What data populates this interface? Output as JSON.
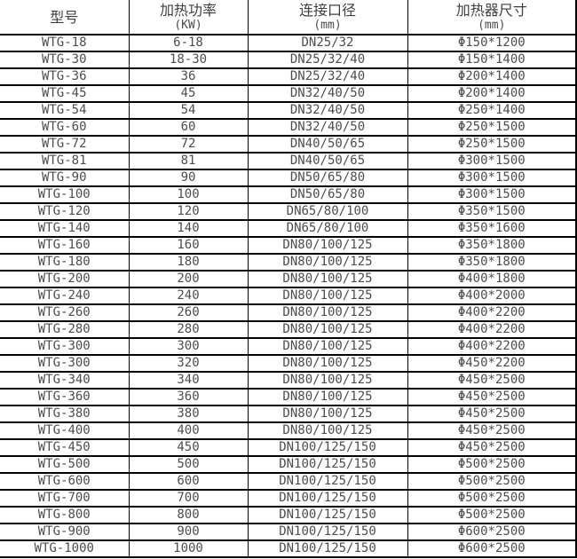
{
  "table": {
    "columns": [
      {
        "title": "型号",
        "unit": ""
      },
      {
        "title": "加热功率",
        "unit": "(KW)"
      },
      {
        "title": "连接口径",
        "unit": "(mm)"
      },
      {
        "title": "加热器尺寸",
        "unit": "(mm)"
      }
    ],
    "rows": [
      {
        "model": "WTG-18",
        "power": "6-18",
        "diameter": "DN25/32",
        "size": "Φ150*1200"
      },
      {
        "model": "WTG-30",
        "power": "18-30",
        "diameter": "DN25/32/40",
        "size": "Φ150*1400"
      },
      {
        "model": "WTG-36",
        "power": "36",
        "diameter": "DN25/32/40",
        "size": "Φ200*1400"
      },
      {
        "model": "WTG-45",
        "power": "45",
        "diameter": "DN32/40/50",
        "size": "Φ200*1400"
      },
      {
        "model": "WTG-54",
        "power": "54",
        "diameter": "DN32/40/50",
        "size": "Φ250*1400"
      },
      {
        "model": "WTG-60",
        "power": "60",
        "diameter": "DN32/40/50",
        "size": "Φ250*1500"
      },
      {
        "model": "WTG-72",
        "power": "72",
        "diameter": "DN40/50/65",
        "size": "Φ250*1500"
      },
      {
        "model": "WTG-81",
        "power": "81",
        "diameter": "DN40/50/65",
        "size": "Φ300*1500"
      },
      {
        "model": "WTG-90",
        "power": "90",
        "diameter": "DN50/65/80",
        "size": "Φ300*1500"
      },
      {
        "model": "WTG-100",
        "power": "100",
        "diameter": "DN50/65/80",
        "size": "Φ300*1500"
      },
      {
        "model": "WTG-120",
        "power": "120",
        "diameter": "DN65/80/100",
        "size": "Φ350*1500"
      },
      {
        "model": "WTG-140",
        "power": "140",
        "diameter": "DN65/80/100",
        "size": "Φ350*1600"
      },
      {
        "model": "WTG-160",
        "power": "160",
        "diameter": "DN80/100/125",
        "size": "Φ350*1800"
      },
      {
        "model": "WTG-180",
        "power": "180",
        "diameter": "DN80/100/125",
        "size": "Φ350*1800"
      },
      {
        "model": "WTG-200",
        "power": "200",
        "diameter": "DN80/100/125",
        "size": "Φ400*1800"
      },
      {
        "model": "WTG-240",
        "power": "240",
        "diameter": "DN80/100/125",
        "size": "Φ400*2000"
      },
      {
        "model": "WTG-260",
        "power": "260",
        "diameter": "DN80/100/125",
        "size": "Φ400*2200"
      },
      {
        "model": "WTG-280",
        "power": "280",
        "diameter": "DN80/100/125",
        "size": "Φ400*2200"
      },
      {
        "model": "WTG-300",
        "power": "300",
        "diameter": "DN80/100/125",
        "size": "Φ400*2200"
      },
      {
        "model": "WTG-300",
        "power": "320",
        "diameter": "DN80/100/125",
        "size": "Φ450*2200"
      },
      {
        "model": "WTG-340",
        "power": "340",
        "diameter": "DN80/100/125",
        "size": "Φ450*2500"
      },
      {
        "model": "WTG-360",
        "power": "360",
        "diameter": "DN80/100/125",
        "size": "Φ450*2500"
      },
      {
        "model": "WTG-380",
        "power": "380",
        "diameter": "DN80/100/125",
        "size": "Φ450*2500"
      },
      {
        "model": "WTG-400",
        "power": "400",
        "diameter": "DN80/100/125",
        "size": "Φ450*2500"
      },
      {
        "model": "WTG-450",
        "power": "450",
        "diameter": "DN100/125/150",
        "size": "Φ450*2500"
      },
      {
        "model": "WTG-500",
        "power": "500",
        "diameter": "DN100/125/150",
        "size": "Φ500*2500"
      },
      {
        "model": "WTG-600",
        "power": "600",
        "diameter": "DN100/125/150",
        "size": "Φ500*2500"
      },
      {
        "model": "WTG-700",
        "power": "700",
        "diameter": "DN100/125/150",
        "size": "Φ500*2500"
      },
      {
        "model": "WTG-800",
        "power": "800",
        "diameter": "DN100/125/150",
        "size": "Φ500*2500"
      },
      {
        "model": "WTG-900",
        "power": "900",
        "diameter": "DN100/125/150",
        "size": "Φ600*2500"
      },
      {
        "model": "WTG-1000",
        "power": "1000",
        "diameter": "DN100/125/150",
        "size": "Φ600*2500"
      }
    ]
  }
}
